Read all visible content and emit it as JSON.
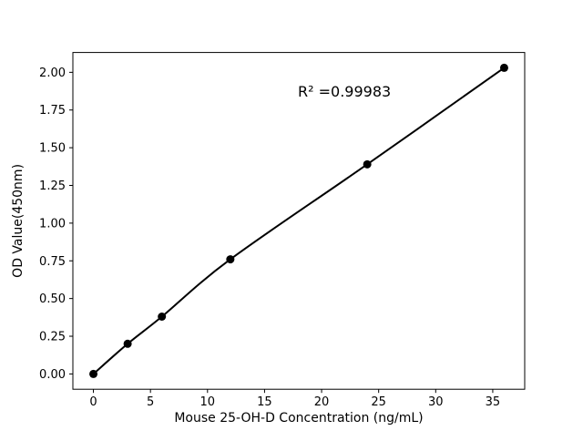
{
  "chart_data": {
    "type": "scatter",
    "title": "",
    "xlabel": "Mouse 25-OH-D Concentration (ng/mL)",
    "ylabel": "OD Value(450nm)",
    "x": [
      0,
      3,
      6,
      12,
      24,
      36
    ],
    "y": [
      0.0,
      0.2,
      0.38,
      0.76,
      1.39,
      2.03
    ],
    "xlim": [
      -1.8,
      37.8
    ],
    "ylim": [
      -0.1015,
      2.1315
    ],
    "xticks": [
      0,
      5,
      10,
      15,
      20,
      25,
      30,
      35
    ],
    "yticks": [
      0.0,
      0.25,
      0.5,
      0.75,
      1.0,
      1.25,
      1.5,
      1.75,
      2.0
    ],
    "annotation": {
      "text": "R² =0.99983",
      "x": 22,
      "y": 1.84
    },
    "line_color": "#000000",
    "marker_color": "#000000",
    "background_color": "#ffffff",
    "grid": false,
    "legend": null,
    "has_fit_line": true
  }
}
